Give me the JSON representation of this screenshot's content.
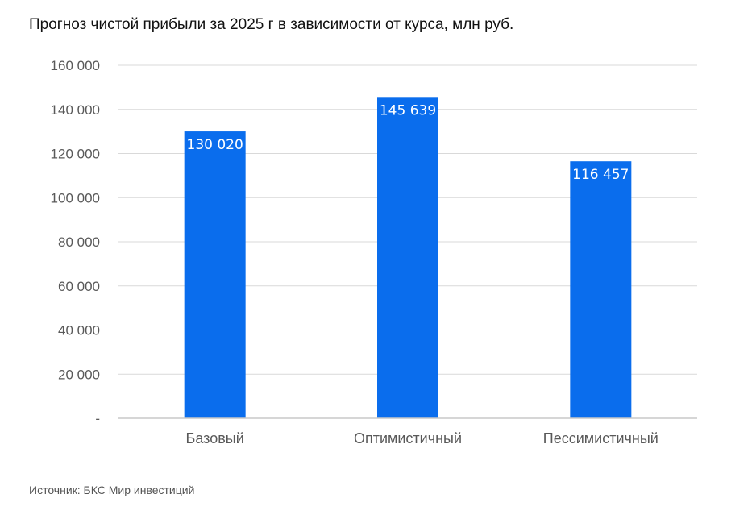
{
  "chart_data": {
    "type": "bar",
    "title": "Прогноз чистой прибыли за 2025 г в зависимости от курса, млн руб.",
    "categories": [
      "Базовый",
      "Оптимистичный",
      "Пессимистичный"
    ],
    "values": [
      130020,
      145639,
      116457
    ],
    "data_labels": [
      "130 020",
      "145 639",
      "116 457"
    ],
    "ylim": [
      0,
      160000
    ],
    "yticks": [
      0,
      20000,
      40000,
      60000,
      80000,
      100000,
      120000,
      140000,
      160000
    ],
    "ytick_labels": [
      "-",
      "20 000",
      "40 000",
      "60 000",
      "80 000",
      "100 000",
      "120 000",
      "140 000",
      "160 000"
    ],
    "grid": true,
    "legend": "none",
    "bar_color": "#0a6ded",
    "grid_color": "#d9d9d9"
  },
  "footer": {
    "source": "Источник: БКС Мир инвестиций"
  }
}
